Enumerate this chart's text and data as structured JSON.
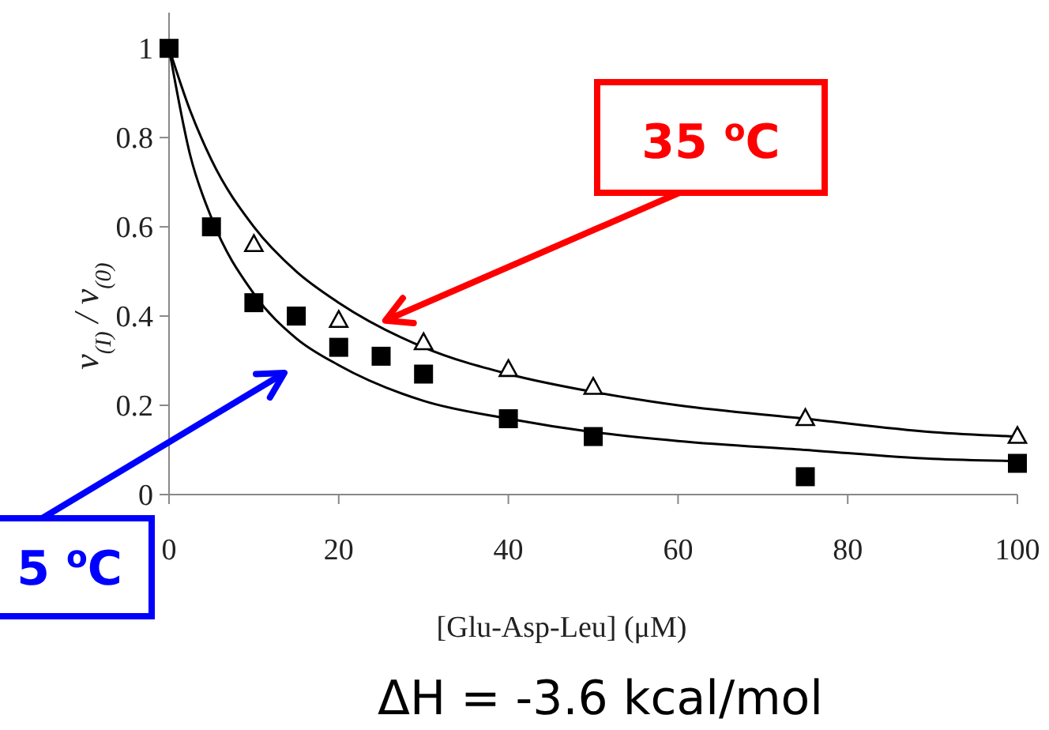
{
  "chart_data": {
    "type": "scatter",
    "xlabel": "[Glu-Asp-Leu]  (μM)",
    "ylabel": "v$_{(I)}$ / v$_{(0)}$",
    "xlim": [
      0,
      100
    ],
    "ylim": [
      0,
      1.08
    ],
    "xticks": [
      0,
      20,
      40,
      60,
      80,
      100
    ],
    "yticks": [
      0,
      0.2,
      0.4,
      0.6,
      0.8,
      1
    ],
    "grid": false,
    "series": [
      {
        "marker": "square",
        "color": "#000000",
        "x": [
          0,
          5,
          10,
          15,
          20,
          25,
          30,
          40,
          50,
          75,
          100
        ],
        "values": [
          1,
          0.6,
          0.43,
          0.4,
          0.33,
          0.31,
          0.27,
          0.17,
          0.13,
          0.04,
          0.07
        ]
      },
      {
        "marker": "triangle",
        "color": "#000000",
        "x": [
          10,
          20,
          30,
          40,
          50,
          75,
          100
        ],
        "values": [
          0.56,
          0.39,
          0.34,
          0.28,
          0.24,
          0.17,
          0.13
        ]
      },
      {
        "type": "line",
        "marker": "none",
        "color": "#000000",
        "x": [
          0,
          2.5,
          5,
          10,
          15,
          20,
          30,
          40,
          50,
          60,
          75,
          90,
          100
        ],
        "values": [
          1,
          0.76,
          0.62,
          0.45,
          0.35,
          0.29,
          0.21,
          0.17,
          0.14,
          0.12,
          0.1,
          0.08,
          0.075
        ]
      },
      {
        "type": "line",
        "marker": "none",
        "color": "#000000",
        "x": [
          0,
          2.5,
          5,
          10,
          15,
          20,
          30,
          40,
          50,
          60,
          75,
          90,
          100
        ],
        "values": [
          1,
          0.86,
          0.75,
          0.6,
          0.5,
          0.43,
          0.33,
          0.27,
          0.23,
          0.2,
          0.17,
          0.14,
          0.13
        ]
      }
    ],
    "annotations": [
      {
        "text": "35 $^{o}$C",
        "x": 25.5,
        "y": 0.39
      },
      "5 $^{o}$C",
      "ΔH = -3.6 kcal/mol"
    ]
  }
}
